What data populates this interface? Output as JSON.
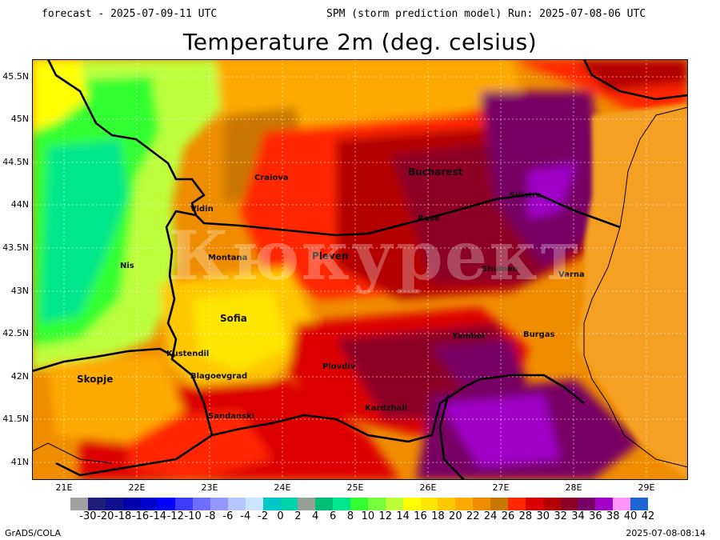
{
  "header": {
    "forecast": "forecast - 2025-07-09-11 UTC",
    "run": "SPM (storm prediction model) Run: 2025-07-08-06 UTC"
  },
  "title": "Temperature 2m (deg. celsius)",
  "axes": {
    "lat_labels": [
      "45.5N",
      "45N",
      "44.5N",
      "44N",
      "43.5N",
      "43N",
      "42.5N",
      "42N",
      "41.5N",
      "41N"
    ],
    "lon_labels": [
      "21E",
      "22E",
      "23E",
      "24E",
      "25E",
      "26E",
      "27E",
      "28E",
      "29E"
    ]
  },
  "cities": [
    {
      "name": "Bucharest",
      "size": "big"
    },
    {
      "name": "Craiova"
    },
    {
      "name": "Silistra"
    },
    {
      "name": "Ruse"
    },
    {
      "name": "Vidin"
    },
    {
      "name": "Pleven"
    },
    {
      "name": "Montana"
    },
    {
      "name": "Nis"
    },
    {
      "name": "Shumen"
    },
    {
      "name": "Varna"
    },
    {
      "name": "Sofia",
      "size": "big"
    },
    {
      "name": "Yambol"
    },
    {
      "name": "Burgas"
    },
    {
      "name": "Kustendil"
    },
    {
      "name": "Plovdiv"
    },
    {
      "name": "Skopje",
      "size": "big"
    },
    {
      "name": "Blagoevgrad"
    },
    {
      "name": "Kardzhali"
    },
    {
      "name": "Sandanski"
    }
  ],
  "watermark": "Кюкурект",
  "legend": {
    "labels": [
      "-30",
      "-20",
      "-18",
      "-16",
      "-14",
      "-12",
      "-10",
      "-8",
      "-6",
      "-4",
      "-2",
      "0",
      "2",
      "4",
      "6",
      "8",
      "10",
      "12",
      "14",
      "16",
      "18",
      "20",
      "22",
      "24",
      "26",
      "28",
      "30",
      "32",
      "34",
      "36",
      "38",
      "40",
      "42"
    ],
    "colors": [
      "#a0a0a0",
      "#1e1e78",
      "#10108c",
      "#0000aa",
      "#0000cd",
      "#0000ff",
      "#3c3cff",
      "#6e6eff",
      "#9696ff",
      "#b4c8ff",
      "#c8e6ff",
      "#00c8c8",
      "#00d2aa",
      "#96a096",
      "#00be78",
      "#00e68c",
      "#32ff32",
      "#78ff3c",
      "#beff3c",
      "#ffff00",
      "#ffe600",
      "#ffc800",
      "#ffaa00",
      "#f08c00",
      "#c87800",
      "#ff2800",
      "#dc0000",
      "#b40000",
      "#8c0028",
      "#780064",
      "#a000c8",
      "#ff96ff",
      "#1e64d2"
    ]
  },
  "footer": {
    "left": "GrADS/COLA",
    "right": "2025-07-08-08:14"
  }
}
